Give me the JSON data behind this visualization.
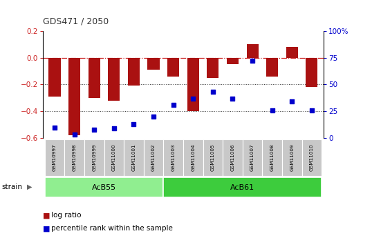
{
  "title": "GDS471 / 2050",
  "samples": [
    "GSM10997",
    "GSM10998",
    "GSM10999",
    "GSM11000",
    "GSM11001",
    "GSM11002",
    "GSM11003",
    "GSM11004",
    "GSM11005",
    "GSM11006",
    "GSM11007",
    "GSM11008",
    "GSM11009",
    "GSM11010"
  ],
  "log_ratio": [
    -0.29,
    -0.58,
    -0.3,
    -0.32,
    -0.21,
    -0.09,
    -0.14,
    -0.4,
    -0.15,
    -0.05,
    0.1,
    -0.14,
    0.08,
    -0.22
  ],
  "percentile_rank": [
    10,
    3,
    8,
    9,
    13,
    20,
    31,
    37,
    43,
    37,
    72,
    26,
    34,
    26
  ],
  "groups": [
    {
      "label": "AcB55",
      "start": 0,
      "end": 6,
      "color": "#90EE90"
    },
    {
      "label": "AcB61",
      "start": 6,
      "end": 14,
      "color": "#3DCC3D"
    }
  ],
  "ylim_left": [
    -0.6,
    0.2
  ],
  "ylim_right": [
    0,
    100
  ],
  "yticks_left": [
    -0.6,
    -0.4,
    -0.2,
    0.0,
    0.2
  ],
  "yticks_right": [
    0,
    25,
    50,
    75,
    100
  ],
  "bar_color": "#AA1111",
  "dot_color": "#0000CC",
  "hline_color": "#CC2222",
  "dotline_color": "#333333",
  "sample_box_color": "#C8C8C8",
  "bg_color": "#FFFFFF",
  "tick_label_color_left": "#CC2222",
  "tick_label_color_right": "#0000CC",
  "legend_bar_label": "log ratio",
  "legend_dot_label": "percentile rank within the sample",
  "figsize": [
    5.38,
    3.45
  ],
  "dpi": 100
}
